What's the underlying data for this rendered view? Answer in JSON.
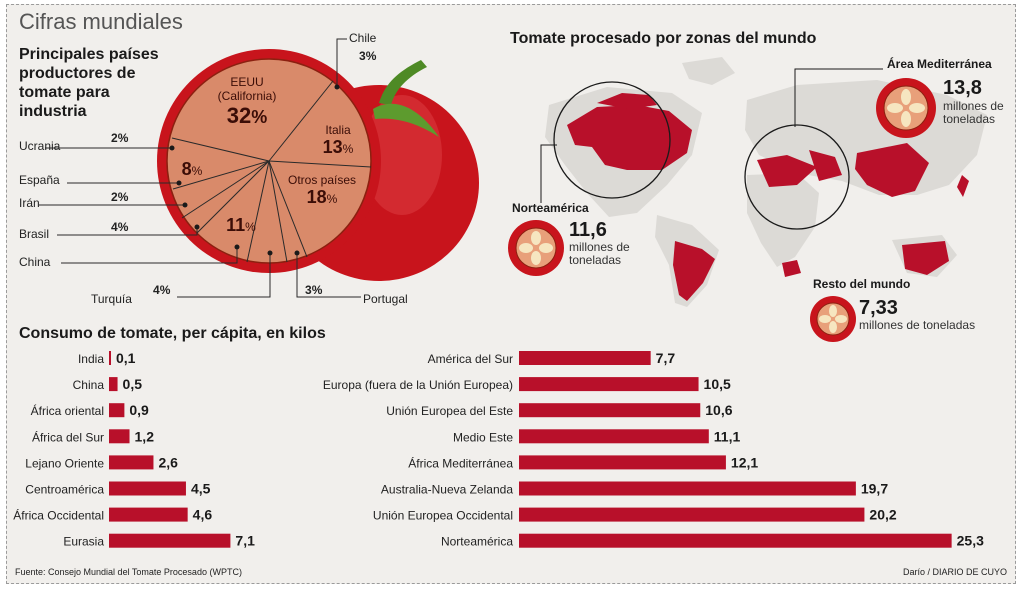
{
  "main_title": "Cifras mundiales",
  "pie_title": "Principales países productores de tomate para industria",
  "map_title": "Tomate procesado por zonas del mundo",
  "bars_title": "Consumo de tomate, per cápita, en kilos",
  "footer": {
    "source": "Fuente: Consejo Mundial del Tomate Procesado (WPTC)",
    "credit": "Darío / DIARIO DE CUYO"
  },
  "colors": {
    "accent": "#b8102a",
    "pie_fill": "#d98a6a",
    "tomato": "#c8141c",
    "background": "#f1efec",
    "leaf": "#4e8a25"
  },
  "pie": {
    "eeuu": {
      "name": "EEUU",
      "sub": "(California)",
      "value": "32",
      "unit": "%"
    },
    "italia": {
      "name": "Italia",
      "value": "13",
      "unit": "%"
    },
    "otros": {
      "name": "Otros países",
      "value": "18",
      "unit": "%"
    },
    "espana": {
      "name": "España",
      "value": "8",
      "unit": "%"
    },
    "china": {
      "name": "China",
      "value": "11",
      "unit": "%"
    },
    "chile": {
      "name": "Chile",
      "value": "3",
      "unit": "%"
    },
    "ucrania": {
      "name": "Ucrania",
      "value": "2",
      "unit": "%"
    },
    "iran": {
      "name": "Irán",
      "value": "2",
      "unit": "%"
    },
    "brasil": {
      "name": "Brasil",
      "value": "4",
      "unit": "%"
    },
    "turquia": {
      "name": "Turquía",
      "value": "4",
      "unit": "%"
    },
    "portugal": {
      "name": "Portugal",
      "value": "3",
      "unit": "%"
    }
  },
  "regions": {
    "mediterranea": {
      "name": "Área Mediterránea",
      "value": "13,8",
      "unit": "millones de toneladas"
    },
    "norteamerica": {
      "name": "Norteamérica",
      "value": "11,6",
      "unit": "millones de toneladas"
    },
    "resto": {
      "name": "Resto del mundo",
      "value": "7,33",
      "unit": "millones de toneladas"
    }
  },
  "chart_data": [
    {
      "type": "pie",
      "title": "Principales países productores de tomate para industria",
      "categories": [
        "EEUU (California)",
        "Italia",
        "Otros países",
        "Portugal",
        "Turquía",
        "China",
        "Brasil",
        "Irán",
        "España",
        "Ucrania",
        "Chile"
      ],
      "values": [
        32,
        13,
        18,
        3,
        4,
        11,
        4,
        2,
        8,
        2,
        3
      ],
      "unit": "%"
    },
    {
      "type": "bar",
      "title": "Consumo de tomate, per cápita, en kilos",
      "categories": [
        "India",
        "China",
        "África oriental",
        "África del Sur",
        "Lejano Oriente",
        "Centroamérica",
        "África Occidental",
        "Eurasia"
      ],
      "values": [
        0.1,
        0.5,
        0.9,
        1.2,
        2.6,
        4.5,
        4.6,
        7.1
      ],
      "value_labels": [
        "0,1",
        "0,5",
        "0,9",
        "1,2",
        "2,6",
        "4,5",
        "4,6",
        "7,1"
      ]
    },
    {
      "type": "bar",
      "title": "Consumo de tomate, per cápita, en kilos",
      "categories": [
        "América del Sur",
        "Europa (fuera de la Unión Europea)",
        "Unión Europea del Este",
        "Medio Este",
        "África Mediterránea",
        "Australia-Nueva Zelanda",
        "Unión Europea Occidental",
        "Norteamérica"
      ],
      "values": [
        7.7,
        10.5,
        10.6,
        11.1,
        12.1,
        19.7,
        20.2,
        25.3
      ],
      "value_labels": [
        "7,7",
        "10,5",
        "10,6",
        "11,1",
        "12,1",
        "19,7",
        "20,2",
        "25,3"
      ]
    }
  ]
}
